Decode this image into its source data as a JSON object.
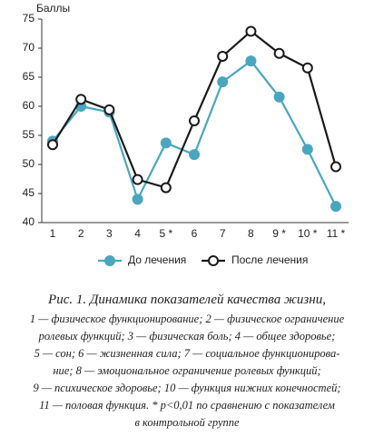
{
  "chart_data": {
    "type": "line",
    "y_label": "Баллы",
    "categories": [
      "1",
      "2",
      "3",
      "4",
      "5 *",
      "6",
      "7",
      "8",
      "9 *",
      "10 *",
      "11 *"
    ],
    "series": [
      {
        "name": "До лечения",
        "color": "#4aa6bf",
        "marker_fill": "#4aa6bf",
        "values": [
          54,
          60,
          59,
          44,
          53.7,
          51.7,
          64.2,
          67.8,
          61.6,
          52.6,
          42.8
        ]
      },
      {
        "name": "После лечения",
        "color": "#1a1a1a",
        "marker_fill": "#ffffff",
        "values": [
          53.4,
          61.2,
          59.4,
          47.4,
          46,
          57.5,
          68.6,
          72.9,
          69.1,
          66.6,
          49.6
        ]
      }
    ],
    "ylim": [
      40,
      75
    ],
    "yticks": [
      40,
      45,
      50,
      55,
      60,
      65,
      70,
      75
    ],
    "grid": false
  },
  "caption": {
    "title": "Рис. 1. Динамика показателей качества жизни,",
    "lines": [
      "1 — физическое функционирование; 2 — физическое ограничение",
      "ролевых функций; 3 — физическая боль; 4 — общее здоровье;",
      "5 — сон; 6 — жизненная сила; 7 — социальное функционирова-",
      "ние; 8 — эмоциональное ограничение ролевых функций;",
      "9 — психическое здоровье; 10 — функция нижних конечностей;",
      "11 — половая функция. * р<0,01 по сравнению с показателем",
      "в контрольной группе"
    ]
  }
}
